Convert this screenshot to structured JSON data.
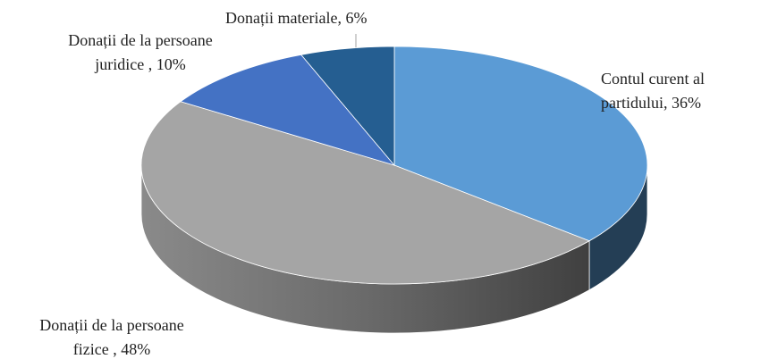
{
  "chart_data": {
    "type": "pie3d",
    "values": [
      36,
      48,
      10,
      6
    ],
    "value_labels": [
      [
        "Contul curent al",
        "partidului, 36%"
      ],
      [
        "Donații de la persoane",
        "fizice , 48%"
      ],
      [
        "Donații de la persoane",
        "juridice , 10%"
      ],
      [
        "Donații materiale, 6%"
      ]
    ],
    "colors": [
      "#5b9bd5",
      "#a5a5a5",
      "#4472c4",
      "#255e91"
    ]
  }
}
